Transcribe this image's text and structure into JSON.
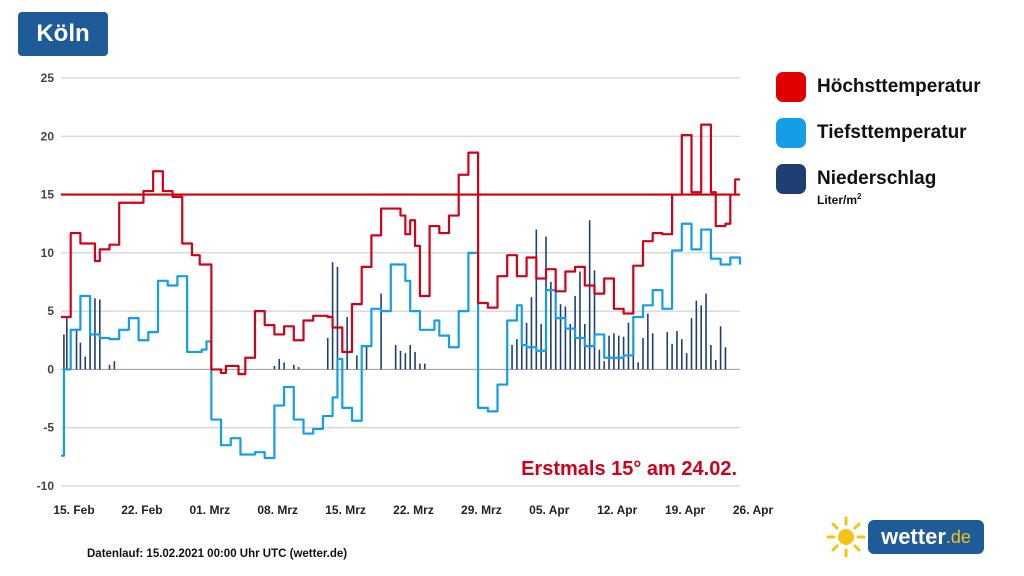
{
  "header": {
    "city": "Köln"
  },
  "legend": {
    "items": [
      {
        "label": "Höchsttemperatur",
        "color": "#e00000"
      },
      {
        "label": "Tiefsttemperatur",
        "color": "#159ee8"
      },
      {
        "label": "Niederschlag",
        "color": "#1f3f73",
        "unit_text": "Liter/m",
        "unit_exp": "2"
      }
    ]
  },
  "footer": {
    "text": "Datenlauf: 15.02.2021 00:00 Uhr UTC (wetter.de)"
  },
  "logo": {
    "name": "wetter",
    "tld": ".de"
  },
  "chart_data": {
    "type": "line",
    "title": "",
    "xlabel": "",
    "ylabel": "",
    "ylim": [
      -10,
      25
    ],
    "yticks": [
      25,
      20,
      15,
      10,
      5,
      0,
      -5,
      -10
    ],
    "x_range_days": [
      0,
      70
    ],
    "x_tick_labels": [
      "15. Feb",
      "22. Feb",
      "01. Mrz",
      "08. Mrz",
      "15. Mrz",
      "22. Mrz",
      "29. Mrz",
      "05. Apr",
      "12. Apr",
      "19. Apr",
      "26. Apr"
    ],
    "x_tick_days": [
      0,
      7,
      14,
      21,
      28,
      35,
      42,
      49,
      56,
      63,
      70
    ],
    "grid": true,
    "reference_line": {
      "y": 15,
      "color": "#cc0000"
    },
    "annotation": {
      "text": "Erstmals 15° am 24.02.",
      "color": "#d0021b"
    },
    "series": [
      {
        "name": "Höchsttemperatur",
        "color": "#d0021b",
        "points": [
          [
            0,
            4.5
          ],
          [
            0.5,
            4.5
          ],
          [
            1,
            11.7
          ],
          [
            2,
            10.8
          ],
          [
            3.5,
            9.3
          ],
          [
            4,
            10.3
          ],
          [
            5,
            10.7
          ],
          [
            6,
            14.3
          ],
          [
            7,
            14.3
          ],
          [
            8.5,
            15.3
          ],
          [
            9.5,
            17
          ],
          [
            10.5,
            15.3
          ],
          [
            11.5,
            14.8
          ],
          [
            12.5,
            10.8
          ],
          [
            13.5,
            9.8
          ],
          [
            14.3,
            9
          ],
          [
            15.5,
            0
          ],
          [
            16.5,
            -0.3
          ],
          [
            17,
            0.3
          ],
          [
            18.3,
            -0.4
          ],
          [
            19,
            1
          ],
          [
            20,
            5
          ],
          [
            21,
            3.8
          ],
          [
            22,
            3
          ],
          [
            23,
            3.7
          ],
          [
            24,
            2.5
          ],
          [
            25,
            4.2
          ],
          [
            26,
            4.6
          ],
          [
            27.5,
            4.5
          ],
          [
            28,
            3.6
          ],
          [
            29,
            1.5
          ],
          [
            30,
            5.6
          ],
          [
            31,
            8.8
          ],
          [
            32,
            11.5
          ],
          [
            33,
            13.8
          ],
          [
            35,
            13.2
          ],
          [
            35.5,
            11.6
          ],
          [
            36,
            12.8
          ],
          [
            36.5,
            10.6
          ],
          [
            37,
            6.3
          ],
          [
            38,
            12.3
          ],
          [
            39,
            11.7
          ],
          [
            40,
            13.2
          ],
          [
            41,
            16.7
          ],
          [
            42,
            18.6
          ],
          [
            43,
            5.7
          ],
          [
            44,
            5.3
          ],
          [
            45,
            8
          ],
          [
            46,
            9.8
          ],
          [
            47,
            8
          ],
          [
            48,
            9.6
          ],
          [
            49,
            7.8
          ],
          [
            50,
            8.6
          ],
          [
            51,
            6.7
          ],
          [
            52,
            8.4
          ],
          [
            53,
            8.8
          ],
          [
            54,
            7.2
          ],
          [
            55,
            6.5
          ],
          [
            56,
            7.8
          ],
          [
            57,
            5.2
          ],
          [
            58,
            4.8
          ],
          [
            59,
            8.9
          ],
          [
            60,
            11
          ],
          [
            61,
            11.7
          ],
          [
            62,
            11.6
          ],
          [
            63,
            15
          ],
          [
            64,
            20.1
          ],
          [
            65,
            15.2
          ],
          [
            66,
            21
          ],
          [
            67,
            15.2
          ],
          [
            67.5,
            12.3
          ],
          [
            68.5,
            12.5
          ],
          [
            69,
            15
          ],
          [
            69.5,
            16.3
          ],
          [
            70,
            16.3
          ]
        ]
      },
      {
        "name": "Tiefsttemperatur",
        "color": "#159ee8",
        "points": [
          [
            0,
            -7.4
          ],
          [
            0.3,
            0
          ],
          [
            1,
            3.4
          ],
          [
            2,
            6.3
          ],
          [
            3,
            3
          ],
          [
            4,
            2.7
          ],
          [
            5,
            2.6
          ],
          [
            6,
            3.4
          ],
          [
            7,
            4.4
          ],
          [
            8,
            2.5
          ],
          [
            9,
            3.2
          ],
          [
            10,
            7.6
          ],
          [
            11,
            7.2
          ],
          [
            12,
            8
          ],
          [
            13,
            1.5
          ],
          [
            14.5,
            1.7
          ],
          [
            15,
            2.4
          ],
          [
            15.5,
            -4.3
          ],
          [
            16.5,
            -6.5
          ],
          [
            17.5,
            -5.9
          ],
          [
            18.5,
            -7.3
          ],
          [
            20,
            -7.1
          ],
          [
            21,
            -7.6
          ],
          [
            22,
            -3.1
          ],
          [
            23,
            -1.5
          ],
          [
            24,
            -4.3
          ],
          [
            25,
            -5.5
          ],
          [
            26,
            -5.1
          ],
          [
            27,
            -4
          ],
          [
            28,
            -2.4
          ],
          [
            28.5,
            0.9
          ],
          [
            29,
            -3.3
          ],
          [
            30,
            -4.4
          ],
          [
            31,
            2
          ],
          [
            32,
            5.2
          ],
          [
            33,
            5
          ],
          [
            34,
            9
          ],
          [
            35.5,
            7.6
          ],
          [
            36,
            5
          ],
          [
            37,
            3.4
          ],
          [
            38.5,
            4.2
          ],
          [
            39,
            2.9
          ],
          [
            40,
            1.9
          ],
          [
            41,
            5
          ],
          [
            42,
            10
          ],
          [
            43,
            -3.3
          ],
          [
            44,
            -3.6
          ],
          [
            45,
            -1.3
          ],
          [
            46,
            4.2
          ],
          [
            47,
            5.5
          ],
          [
            47.5,
            2.1
          ],
          [
            48,
            1.9
          ],
          [
            49,
            1.6
          ],
          [
            50,
            6.8
          ],
          [
            51,
            4.4
          ],
          [
            52,
            3.5
          ],
          [
            53,
            2.7
          ],
          [
            54,
            2
          ],
          [
            55,
            3
          ],
          [
            56,
            1
          ],
          [
            58,
            1.2
          ],
          [
            59,
            4.5
          ],
          [
            60,
            5.5
          ],
          [
            61,
            6.8
          ],
          [
            62,
            5.2
          ],
          [
            63,
            10.2
          ],
          [
            64,
            12.5
          ],
          [
            65,
            10.3
          ],
          [
            66,
            12
          ],
          [
            67,
            9.5
          ],
          [
            68,
            9
          ],
          [
            69,
            9.6
          ],
          [
            70,
            9
          ]
        ]
      },
      {
        "name": "Niederschlag",
        "color": "#1f3f73",
        "days": [
          0.3,
          0.6,
          1,
          1.6,
          2,
          2.5,
          3,
          3.5,
          4,
          5,
          5.5,
          22,
          22.5,
          23,
          24,
          24.5,
          27.5,
          28,
          28.5,
          29,
          29.5,
          30.5,
          31.5,
          33,
          34.5,
          35,
          35.5,
          36,
          36.5,
          37,
          37.5,
          46,
          46.5,
          47,
          47.5,
          48,
          48.5,
          49,
          49.5,
          50,
          50.5,
          51,
          51.5,
          52,
          52.5,
          53,
          53.5,
          54,
          54.5,
          55,
          55.5,
          56,
          56.5,
          57,
          57.5,
          58,
          58.5,
          59,
          59.5,
          60,
          60.5,
          61,
          62.5,
          63,
          63.5,
          64,
          64.5,
          65,
          65.5,
          66,
          66.5,
          67,
          67.5,
          68,
          68.5
        ],
        "values": [
          3,
          4.5,
          2,
          3.5,
          2.3,
          1.1,
          5.5,
          6.1,
          6,
          0.4,
          0.7,
          0.3,
          0.9,
          0.6,
          0.4,
          0.2,
          2.7,
          9.2,
          8.8,
          0.7,
          4.5,
          1.2,
          2,
          6.5,
          2.1,
          1.6,
          1.4,
          2.1,
          1.5,
          0.5,
          0.5,
          1.2,
          2.1,
          2.6,
          3.6,
          4,
          6.2,
          12,
          3.9,
          11.4,
          7.5,
          6.6,
          5.6,
          5.4,
          3.9,
          6.3,
          8.4,
          3.9,
          12.8,
          8.5,
          1.7,
          0.7,
          2.9,
          3.1,
          2.9,
          2.8,
          4,
          3.2,
          0.6,
          2.7,
          4.8,
          3.1,
          3.2,
          2.2,
          3.3,
          2.6,
          1.4,
          4.4,
          5.9,
          5.5,
          6.5,
          2.1,
          0.8,
          3.7,
          1.9
        ]
      }
    ]
  }
}
